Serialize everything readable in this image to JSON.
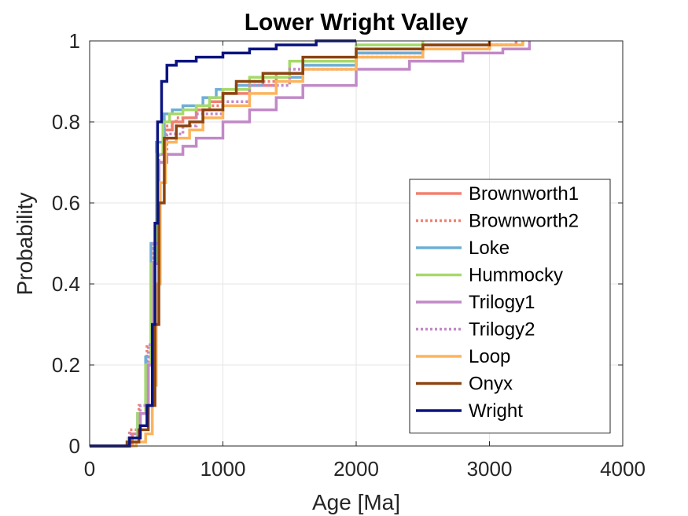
{
  "chart_data": {
    "type": "line",
    "title": "Lower Wright Valley",
    "xlabel": "Age [Ma]",
    "ylabel": "Probability",
    "xlim": [
      0,
      4000
    ],
    "ylim": [
      0,
      1
    ],
    "xticks": [
      0,
      1000,
      2000,
      3000,
      4000
    ],
    "yticks": [
      0,
      0.2,
      0.4,
      0.6,
      0.8,
      1
    ],
    "xtick_labels": [
      "0",
      "1000",
      "2000",
      "3000",
      "4000"
    ],
    "ytick_labels": [
      "0",
      "0.2",
      "0.4",
      "0.6",
      "0.8",
      "1"
    ],
    "grid": true,
    "legend_position": "bottom-right",
    "series": [
      {
        "name": "Brownworth1",
        "color": "#f08070",
        "dash": "solid",
        "points": [
          [
            0,
            0
          ],
          [
            250,
            0
          ],
          [
            320,
            0.03
          ],
          [
            380,
            0.08
          ],
          [
            440,
            0.2
          ],
          [
            480,
            0.45
          ],
          [
            520,
            0.7
          ],
          [
            560,
            0.78
          ],
          [
            620,
            0.8
          ],
          [
            700,
            0.81
          ],
          [
            800,
            0.83
          ],
          [
            900,
            0.85
          ],
          [
            1000,
            0.87
          ],
          [
            1200,
            0.89
          ],
          [
            1400,
            0.92
          ],
          [
            1600,
            0.95
          ],
          [
            2000,
            0.97
          ],
          [
            2500,
            0.98
          ],
          [
            3000,
            0.99
          ],
          [
            3200,
            1
          ]
        ]
      },
      {
        "name": "Brownworth2",
        "color": "#f08070",
        "dash": "dotted",
        "points": [
          [
            0,
            0
          ],
          [
            220,
            0
          ],
          [
            300,
            0.04
          ],
          [
            370,
            0.1
          ],
          [
            430,
            0.25
          ],
          [
            470,
            0.5
          ],
          [
            510,
            0.72
          ],
          [
            560,
            0.79
          ],
          [
            650,
            0.81
          ],
          [
            800,
            0.84
          ],
          [
            1000,
            0.88
          ],
          [
            1200,
            0.9
          ],
          [
            1400,
            0.92
          ],
          [
            1600,
            0.95
          ],
          [
            2000,
            0.97
          ],
          [
            2500,
            0.98
          ],
          [
            3000,
            0.99
          ],
          [
            3250,
            1
          ]
        ]
      },
      {
        "name": "Loke",
        "color": "#6faed6",
        "dash": "solid",
        "points": [
          [
            0,
            0
          ],
          [
            200,
            0
          ],
          [
            290,
            0.02
          ],
          [
            360,
            0.08
          ],
          [
            420,
            0.22
          ],
          [
            460,
            0.5
          ],
          [
            500,
            0.75
          ],
          [
            560,
            0.82
          ],
          [
            620,
            0.83
          ],
          [
            700,
            0.84
          ],
          [
            850,
            0.86
          ],
          [
            950,
            0.88
          ],
          [
            1100,
            0.89
          ],
          [
            1300,
            0.91
          ],
          [
            1600,
            0.94
          ],
          [
            2000,
            0.97
          ],
          [
            2500,
            0.99
          ],
          [
            3000,
            1
          ]
        ]
      },
      {
        "name": "Hummocky",
        "color": "#a6d96a",
        "dash": "solid",
        "points": [
          [
            0,
            0
          ],
          [
            200,
            0
          ],
          [
            290,
            0.02
          ],
          [
            360,
            0.08
          ],
          [
            420,
            0.2
          ],
          [
            460,
            0.45
          ],
          [
            500,
            0.72
          ],
          [
            550,
            0.8
          ],
          [
            600,
            0.82
          ],
          [
            700,
            0.83
          ],
          [
            800,
            0.84
          ],
          [
            900,
            0.86
          ],
          [
            1000,
            0.88
          ],
          [
            1200,
            0.91
          ],
          [
            1500,
            0.95
          ],
          [
            2000,
            0.99
          ],
          [
            2500,
            1
          ]
        ]
      },
      {
        "name": "Trilogy1",
        "color": "#c189c7",
        "dash": "solid",
        "points": [
          [
            0,
            0
          ],
          [
            200,
            0
          ],
          [
            300,
            0.02
          ],
          [
            380,
            0.08
          ],
          [
            440,
            0.2
          ],
          [
            480,
            0.45
          ],
          [
            520,
            0.7
          ],
          [
            580,
            0.72
          ],
          [
            700,
            0.74
          ],
          [
            800,
            0.76
          ],
          [
            1000,
            0.8
          ],
          [
            1200,
            0.83
          ],
          [
            1400,
            0.86
          ],
          [
            1600,
            0.89
          ],
          [
            2000,
            0.93
          ],
          [
            2400,
            0.95
          ],
          [
            2800,
            0.97
          ],
          [
            3100,
            0.98
          ],
          [
            3300,
            1
          ]
        ]
      },
      {
        "name": "Trilogy2",
        "color": "#c189c7",
        "dash": "dotted",
        "points": [
          [
            0,
            0
          ],
          [
            210,
            0
          ],
          [
            300,
            0.03
          ],
          [
            380,
            0.1
          ],
          [
            440,
            0.25
          ],
          [
            480,
            0.5
          ],
          [
            520,
            0.72
          ],
          [
            580,
            0.77
          ],
          [
            700,
            0.79
          ],
          [
            800,
            0.82
          ],
          [
            1000,
            0.85
          ],
          [
            1200,
            0.89
          ],
          [
            1500,
            0.93
          ],
          [
            2000,
            0.96
          ],
          [
            2500,
            0.98
          ],
          [
            3000,
            0.99
          ],
          [
            3200,
            1
          ]
        ]
      },
      {
        "name": "Loop",
        "color": "#fdb45c",
        "dash": "solid",
        "points": [
          [
            0,
            0
          ],
          [
            250,
            0
          ],
          [
            350,
            0.01
          ],
          [
            420,
            0.03
          ],
          [
            470,
            0.15
          ],
          [
            500,
            0.4
          ],
          [
            530,
            0.65
          ],
          [
            570,
            0.75
          ],
          [
            650,
            0.76
          ],
          [
            750,
            0.78
          ],
          [
            850,
            0.81
          ],
          [
            1000,
            0.84
          ],
          [
            1200,
            0.87
          ],
          [
            1400,
            0.9
          ],
          [
            1600,
            0.93
          ],
          [
            2000,
            0.96
          ],
          [
            2500,
            0.98
          ],
          [
            3000,
            0.99
          ],
          [
            3250,
            1
          ]
        ]
      },
      {
        "name": "Onyx",
        "color": "#8c4410",
        "dash": "solid",
        "points": [
          [
            0,
            0
          ],
          [
            180,
            0
          ],
          [
            280,
            0.01
          ],
          [
            370,
            0.04
          ],
          [
            440,
            0.1
          ],
          [
            490,
            0.3
          ],
          [
            520,
            0.6
          ],
          [
            560,
            0.76
          ],
          [
            650,
            0.79
          ],
          [
            750,
            0.8
          ],
          [
            850,
            0.83
          ],
          [
            1000,
            0.87
          ],
          [
            1100,
            0.9
          ],
          [
            1300,
            0.92
          ],
          [
            1600,
            0.96
          ],
          [
            2000,
            0.98
          ],
          [
            2500,
            0.99
          ],
          [
            3000,
            1
          ]
        ]
      },
      {
        "name": "Wright",
        "color": "#0a1480",
        "dash": "solid",
        "points": [
          [
            0,
            0
          ],
          [
            200,
            0
          ],
          [
            300,
            0.02
          ],
          [
            380,
            0.05
          ],
          [
            430,
            0.1
          ],
          [
            470,
            0.3
          ],
          [
            490,
            0.55
          ],
          [
            510,
            0.8
          ],
          [
            540,
            0.9
          ],
          [
            580,
            0.94
          ],
          [
            650,
            0.95
          ],
          [
            800,
            0.96
          ],
          [
            1000,
            0.97
          ],
          [
            1200,
            0.98
          ],
          [
            1400,
            0.99
          ],
          [
            1700,
            1
          ],
          [
            2000,
            1
          ]
        ]
      }
    ]
  }
}
